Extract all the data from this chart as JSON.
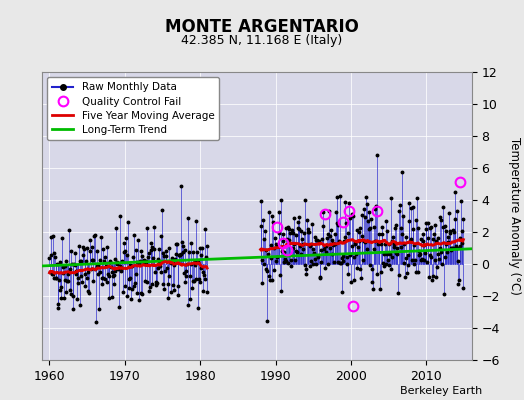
{
  "title": "MONTE ARGENTARIO",
  "subtitle": "42.385 N, 11.168 E (Italy)",
  "ylabel": "Temperature Anomaly (°C)",
  "credit": "Berkeley Earth",
  "xlim": [
    1959,
    2016
  ],
  "ylim": [
    -6,
    12
  ],
  "yticks": [
    -6,
    -4,
    -2,
    0,
    2,
    4,
    6,
    8,
    10,
    12
  ],
  "xticks": [
    1960,
    1970,
    1980,
    1990,
    2000,
    2010
  ],
  "fig_bg_color": "#e8e8e8",
  "plot_bg_color": "#d8d8e8",
  "raw_color": "#2222cc",
  "moving_avg_color": "#dd0000",
  "trend_color": "#00bb00",
  "qc_fail_color": "#ff00ff",
  "grid_color": "#c0c0c8",
  "seed": 42,
  "period1_start": 1960,
  "period1_end": 1980,
  "period2_start": 1988,
  "period2_end": 2014,
  "trend_x": [
    1959,
    2016
  ],
  "trend_y": [
    -0.12,
    0.95
  ],
  "qc_times": [
    1990.25,
    1991.0,
    1991.5,
    1996.5,
    1999.0,
    1999.75,
    2000.25,
    2003.5,
    2014.5
  ],
  "qc_vals": [
    2.3,
    1.3,
    0.9,
    3.1,
    2.6,
    3.3,
    -2.6,
    3.3,
    5.1
  ]
}
